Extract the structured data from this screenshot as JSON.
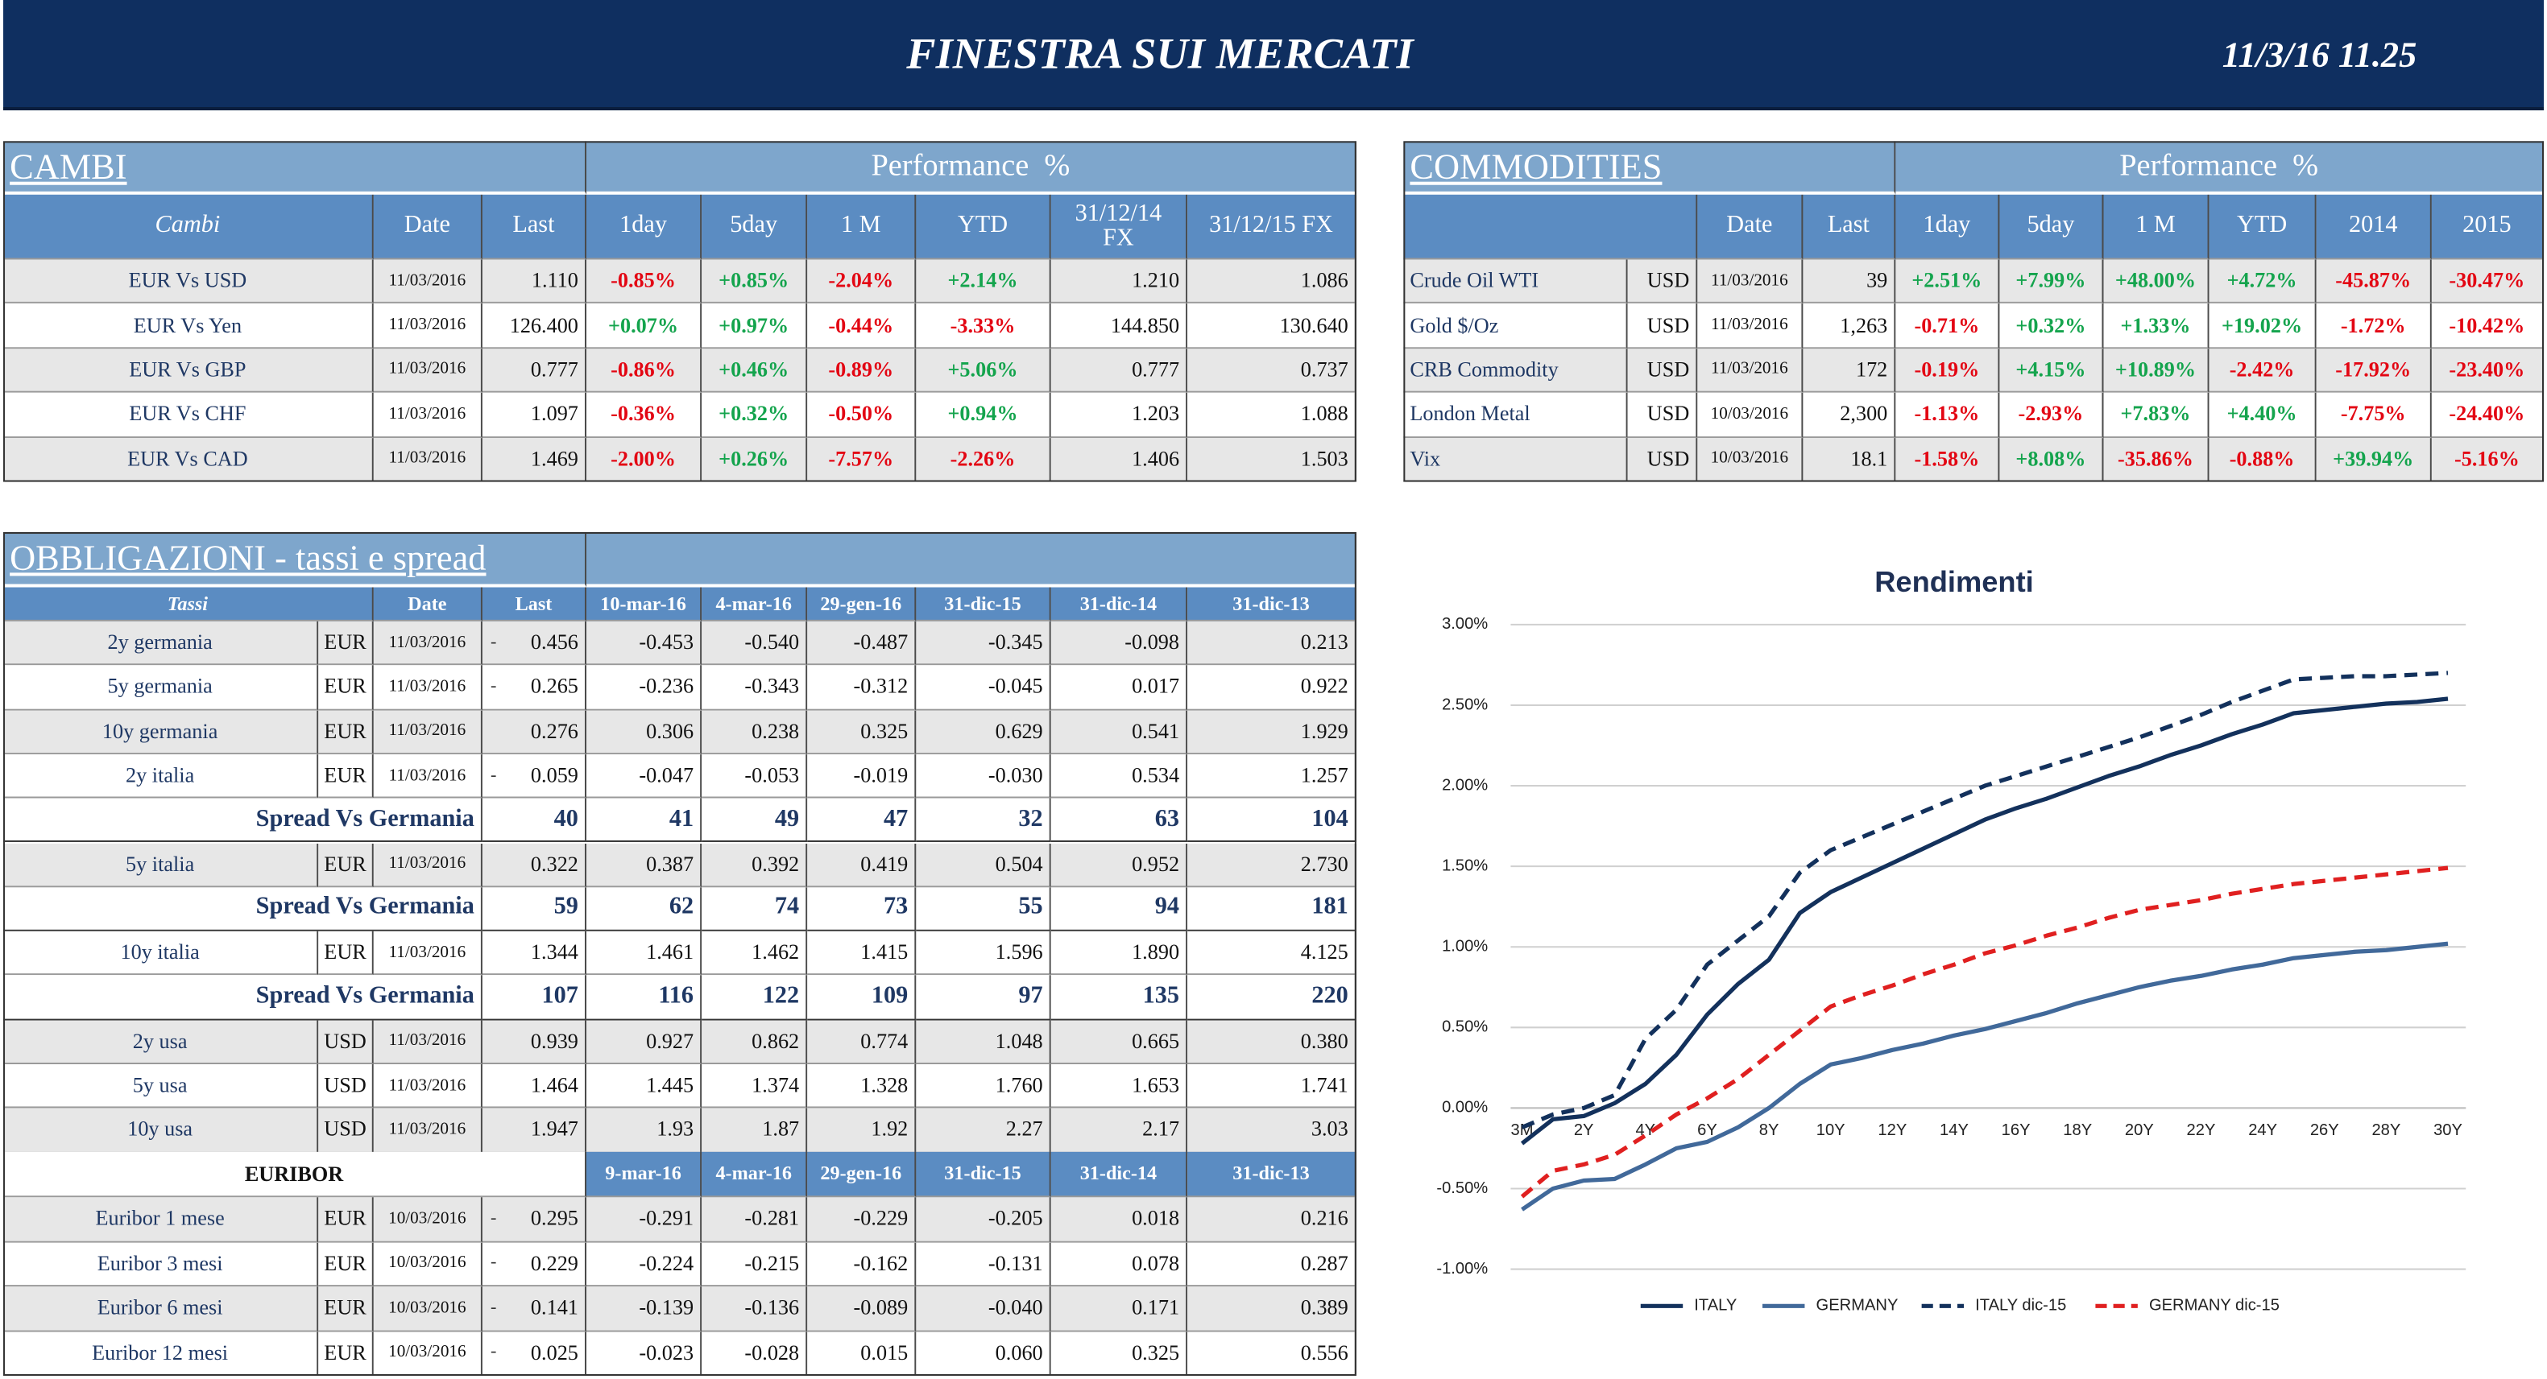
{
  "header": {
    "title": "FINESTRA SUI MERCATI",
    "timestamp": "11/3/16 11.25"
  },
  "cambi": {
    "title": "CAMBI",
    "performance": "Performance  %",
    "columns": [
      "Cambi",
      "Date",
      "Last",
      "1day",
      "5day",
      "1 M",
      "YTD",
      "31/12/14 FX",
      "31/12/15  FX"
    ],
    "rows": [
      [
        "EUR Vs USD",
        "11/03/2016",
        "1.110",
        "-0.85%",
        "+0.85%",
        "-2.04%",
        "+2.14%",
        "1.210",
        "1.086"
      ],
      [
        "EUR Vs Yen",
        "11/03/2016",
        "126.400",
        "+0.07%",
        "+0.97%",
        "-0.44%",
        "-3.33%",
        "144.850",
        "130.640"
      ],
      [
        "EUR Vs GBP",
        "11/03/2016",
        "0.777",
        "-0.86%",
        "+0.46%",
        "-0.89%",
        "+5.06%",
        "0.777",
        "0.737"
      ],
      [
        "EUR Vs CHF",
        "11/03/2016",
        "1.097",
        "-0.36%",
        "+0.32%",
        "-0.50%",
        "+0.94%",
        "1.203",
        "1.088"
      ],
      [
        "EUR Vs CAD",
        "11/03/2016",
        "1.469",
        "-2.00%",
        "+0.26%",
        "-7.57%",
        "-2.26%",
        "1.406",
        "1.503"
      ]
    ]
  },
  "commodities": {
    "title": "COMMODITIES",
    "performance": "Performance  %",
    "columns": [
      "Date",
      "Last",
      "1day",
      "5day",
      "1 M",
      "YTD",
      "2014",
      "2015"
    ],
    "rows": [
      [
        "Crude Oil WTI",
        "USD",
        "11/03/2016",
        "39",
        "+2.51%",
        "+7.99%",
        "+48.00%",
        "+4.72%",
        "-45.87%",
        "-30.47%"
      ],
      [
        "Gold $/Oz",
        "USD",
        "11/03/2016",
        "1,263",
        "-0.71%",
        "+0.32%",
        "+1.33%",
        "+19.02%",
        "-1.72%",
        "-10.42%"
      ],
      [
        "CRB Commodity",
        "USD",
        "11/03/2016",
        "172",
        "-0.19%",
        "+4.15%",
        "+10.89%",
        "-2.42%",
        "-17.92%",
        "-23.40%"
      ],
      [
        "London Metal",
        "USD",
        "10/03/2016",
        "2,300",
        "-1.13%",
        "-2.93%",
        "+7.83%",
        "+4.40%",
        "-7.75%",
        "-24.40%"
      ],
      [
        "Vix",
        "USD",
        "10/03/2016",
        "18.1",
        "-1.58%",
        "+8.08%",
        "-35.86%",
        "-0.88%",
        "+39.94%",
        "-5.16%"
      ]
    ]
  },
  "bonds": {
    "title": "OBBLIGAZIONI - tassi e spread",
    "columns": [
      "Tassi",
      "Date",
      "Last",
      "10-mar-16",
      "4-mar-16",
      "29-gen-16",
      "31-dic-15",
      "31-dic-14",
      "31-dic-13"
    ],
    "rows": [
      {
        "name": "2y germania",
        "currency": "EUR",
        "date": "11/03/2016",
        "flag": "-",
        "last": "0.456",
        "history": [
          "-0.453",
          "-0.540",
          "-0.487",
          "-0.345",
          "-0.098",
          "0.213"
        ]
      },
      {
        "name": "5y germania",
        "currency": "EUR",
        "date": "11/03/2016",
        "flag": "-",
        "last": "0.265",
        "history": [
          "-0.236",
          "-0.343",
          "-0.312",
          "-0.045",
          "0.017",
          "0.922"
        ]
      },
      {
        "name": "10y germania",
        "currency": "EUR",
        "date": "11/03/2016",
        "last": "0.276",
        "history": [
          "0.306",
          "0.238",
          "0.325",
          "0.629",
          "0.541",
          "1.929"
        ]
      },
      {
        "name": "2y italia",
        "currency": "EUR",
        "date": "11/03/2016",
        "flag": "-",
        "last": "0.059",
        "history": [
          "-0.047",
          "-0.053",
          "-0.019",
          "-0.030",
          "0.534",
          "1.257"
        ]
      },
      {
        "label": "Spread Vs Germania",
        "last": "40",
        "history": [
          "41",
          "49",
          "47",
          "32",
          "63",
          "104"
        ]
      },
      {
        "name": "5y italia",
        "currency": "EUR",
        "date": "11/03/2016",
        "last": "0.322",
        "history": [
          "0.387",
          "0.392",
          "0.419",
          "0.504",
          "0.952",
          "2.730"
        ]
      },
      {
        "label": "Spread Vs Germania",
        "last": "59",
        "history": [
          "62",
          "74",
          "73",
          "55",
          "94",
          "181"
        ]
      },
      {
        "name": "10y italia",
        "currency": "EUR",
        "date": "11/03/2016",
        "last": "1.344",
        "history": [
          "1.461",
          "1.462",
          "1.415",
          "1.596",
          "1.890",
          "4.125"
        ]
      },
      {
        "label": "Spread Vs Germania",
        "last": "107",
        "history": [
          "116",
          "122",
          "109",
          "97",
          "135",
          "220"
        ]
      },
      {
        "name": "2y usa",
        "currency": "USD",
        "date": "11/03/2016",
        "last": "0.939",
        "history": [
          "0.927",
          "0.862",
          "0.774",
          "1.048",
          "0.665",
          "0.380"
        ]
      },
      {
        "name": "5y usa",
        "currency": "USD",
        "date": "11/03/2016",
        "last": "1.464",
        "history": [
          "1.445",
          "1.374",
          "1.328",
          "1.760",
          "1.653",
          "1.741"
        ]
      },
      {
        "name": "10y usa",
        "currency": "USD",
        "date": "11/03/2016",
        "last": "1.947",
        "history": [
          "1.93",
          "1.87",
          "1.92",
          "2.27",
          "2.17",
          "3.03"
        ]
      }
    ]
  },
  "euribor": {
    "title": "EURIBOR",
    "columns": [
      "9-mar-16",
      "4-mar-16",
      "29-gen-16",
      "31-dic-15",
      "31-dic-14",
      "31-dic-13"
    ],
    "rows": [
      {
        "name": "Euribor 1 mese",
        "currency": "EUR",
        "date": "10/03/2016",
        "flag": "-",
        "last": "0.295",
        "history": [
          "-0.291",
          "-0.281",
          "-0.229",
          "-0.205",
          "0.018",
          "0.216"
        ]
      },
      {
        "name": "Euribor 3 mesi",
        "currency": "EUR",
        "date": "10/03/2016",
        "flag": "-",
        "last": "0.229",
        "history": [
          "-0.224",
          "-0.215",
          "-0.162",
          "-0.131",
          "0.078",
          "0.287"
        ]
      },
      {
        "name": "Euribor 6 mesi",
        "currency": "EUR",
        "date": "10/03/2016",
        "flag": "-",
        "last": "0.141",
        "history": [
          "-0.139",
          "-0.136",
          "-0.089",
          "-0.040",
          "0.171",
          "0.389"
        ]
      },
      {
        "name": "Euribor 12 mesi",
        "currency": "EUR",
        "date": "10/03/2016",
        "flag": "-",
        "last": "0.025",
        "history": [
          "-0.023",
          "-0.028",
          "0.015",
          "0.060",
          "0.325",
          "0.556"
        ]
      }
    ]
  },
  "chart_data": {
    "type": "line",
    "title": "Rendimenti",
    "categories": [
      "3M",
      null,
      "2Y",
      null,
      "4Y",
      null,
      "6Y",
      null,
      "8Y",
      null,
      "10Y",
      null,
      "12Y",
      null,
      "14Y",
      null,
      "16Y",
      null,
      "18Y",
      null,
      "20Y",
      null,
      "22Y",
      null,
      "24Y",
      null,
      "26Y",
      null,
      "28Y",
      null,
      "30Y"
    ],
    "series": [
      {
        "name": "ITALY",
        "color": "#13315c",
        "dashed": false,
        "values": [
          -0.22,
          -0.07,
          -0.05,
          0.03,
          0.15,
          0.33,
          0.58,
          0.77,
          0.92,
          1.21,
          1.34,
          1.43,
          1.52,
          1.61,
          1.7,
          1.79,
          1.86,
          1.92,
          1.99,
          2.06,
          2.12,
          2.19,
          2.25,
          2.32,
          2.38,
          2.45,
          2.47,
          2.49,
          2.51,
          2.52,
          2.54
        ]
      },
      {
        "name": "GERMANY",
        "color": "#41699a",
        "dashed": false,
        "values": [
          -0.63,
          -0.5,
          -0.45,
          -0.44,
          -0.35,
          -0.25,
          -0.21,
          -0.12,
          0,
          0.15,
          0.27,
          0.31,
          0.36,
          0.4,
          0.45,
          0.49,
          0.54,
          0.59,
          0.65,
          0.7,
          0.75,
          0.79,
          0.82,
          0.86,
          0.89,
          0.93,
          0.95,
          0.97,
          0.98,
          1.0,
          1.02
        ]
      },
      {
        "name": "ITALY dic-15",
        "color": "#13315c",
        "dashed": true,
        "values": [
          -0.12,
          -0.04,
          0,
          0.08,
          0.43,
          0.61,
          0.89,
          1.04,
          1.19,
          1.46,
          1.6,
          1.68,
          1.76,
          1.84,
          1.92,
          2.0,
          2.06,
          2.12,
          2.18,
          2.24,
          2.3,
          2.37,
          2.44,
          2.52,
          2.59,
          2.66,
          2.67,
          2.68,
          2.68,
          2.69,
          2.7
        ]
      },
      {
        "name": "GERMANY dic-15",
        "color": "#e02020",
        "dashed": true,
        "values": [
          -0.55,
          -0.39,
          -0.35,
          -0.29,
          -0.17,
          -0.04,
          0.06,
          0.18,
          0.33,
          0.48,
          0.63,
          0.7,
          0.76,
          0.83,
          0.89,
          0.96,
          1.01,
          1.07,
          1.12,
          1.18,
          1.23,
          1.26,
          1.29,
          1.33,
          1.36,
          1.39,
          1.41,
          1.43,
          1.45,
          1.47,
          1.49
        ]
      }
    ],
    "ylim": [
      -1,
      3
    ],
    "yticks": [
      {
        "value": -1,
        "label": "-1.00%"
      },
      {
        "value": -0.5,
        "label": "-0.50%"
      },
      {
        "value": 0,
        "label": "0.00%"
      },
      {
        "value": 0.5,
        "label": "0.50%"
      },
      {
        "value": 1,
        "label": "1.00%"
      },
      {
        "value": 1.5,
        "label": "1.50%"
      },
      {
        "value": 2,
        "label": "2.00%"
      },
      {
        "value": 2.5,
        "label": "2.50%"
      },
      {
        "value": 3,
        "label": "3.00%"
      }
    ],
    "grid": true,
    "legend": "bottom"
  }
}
